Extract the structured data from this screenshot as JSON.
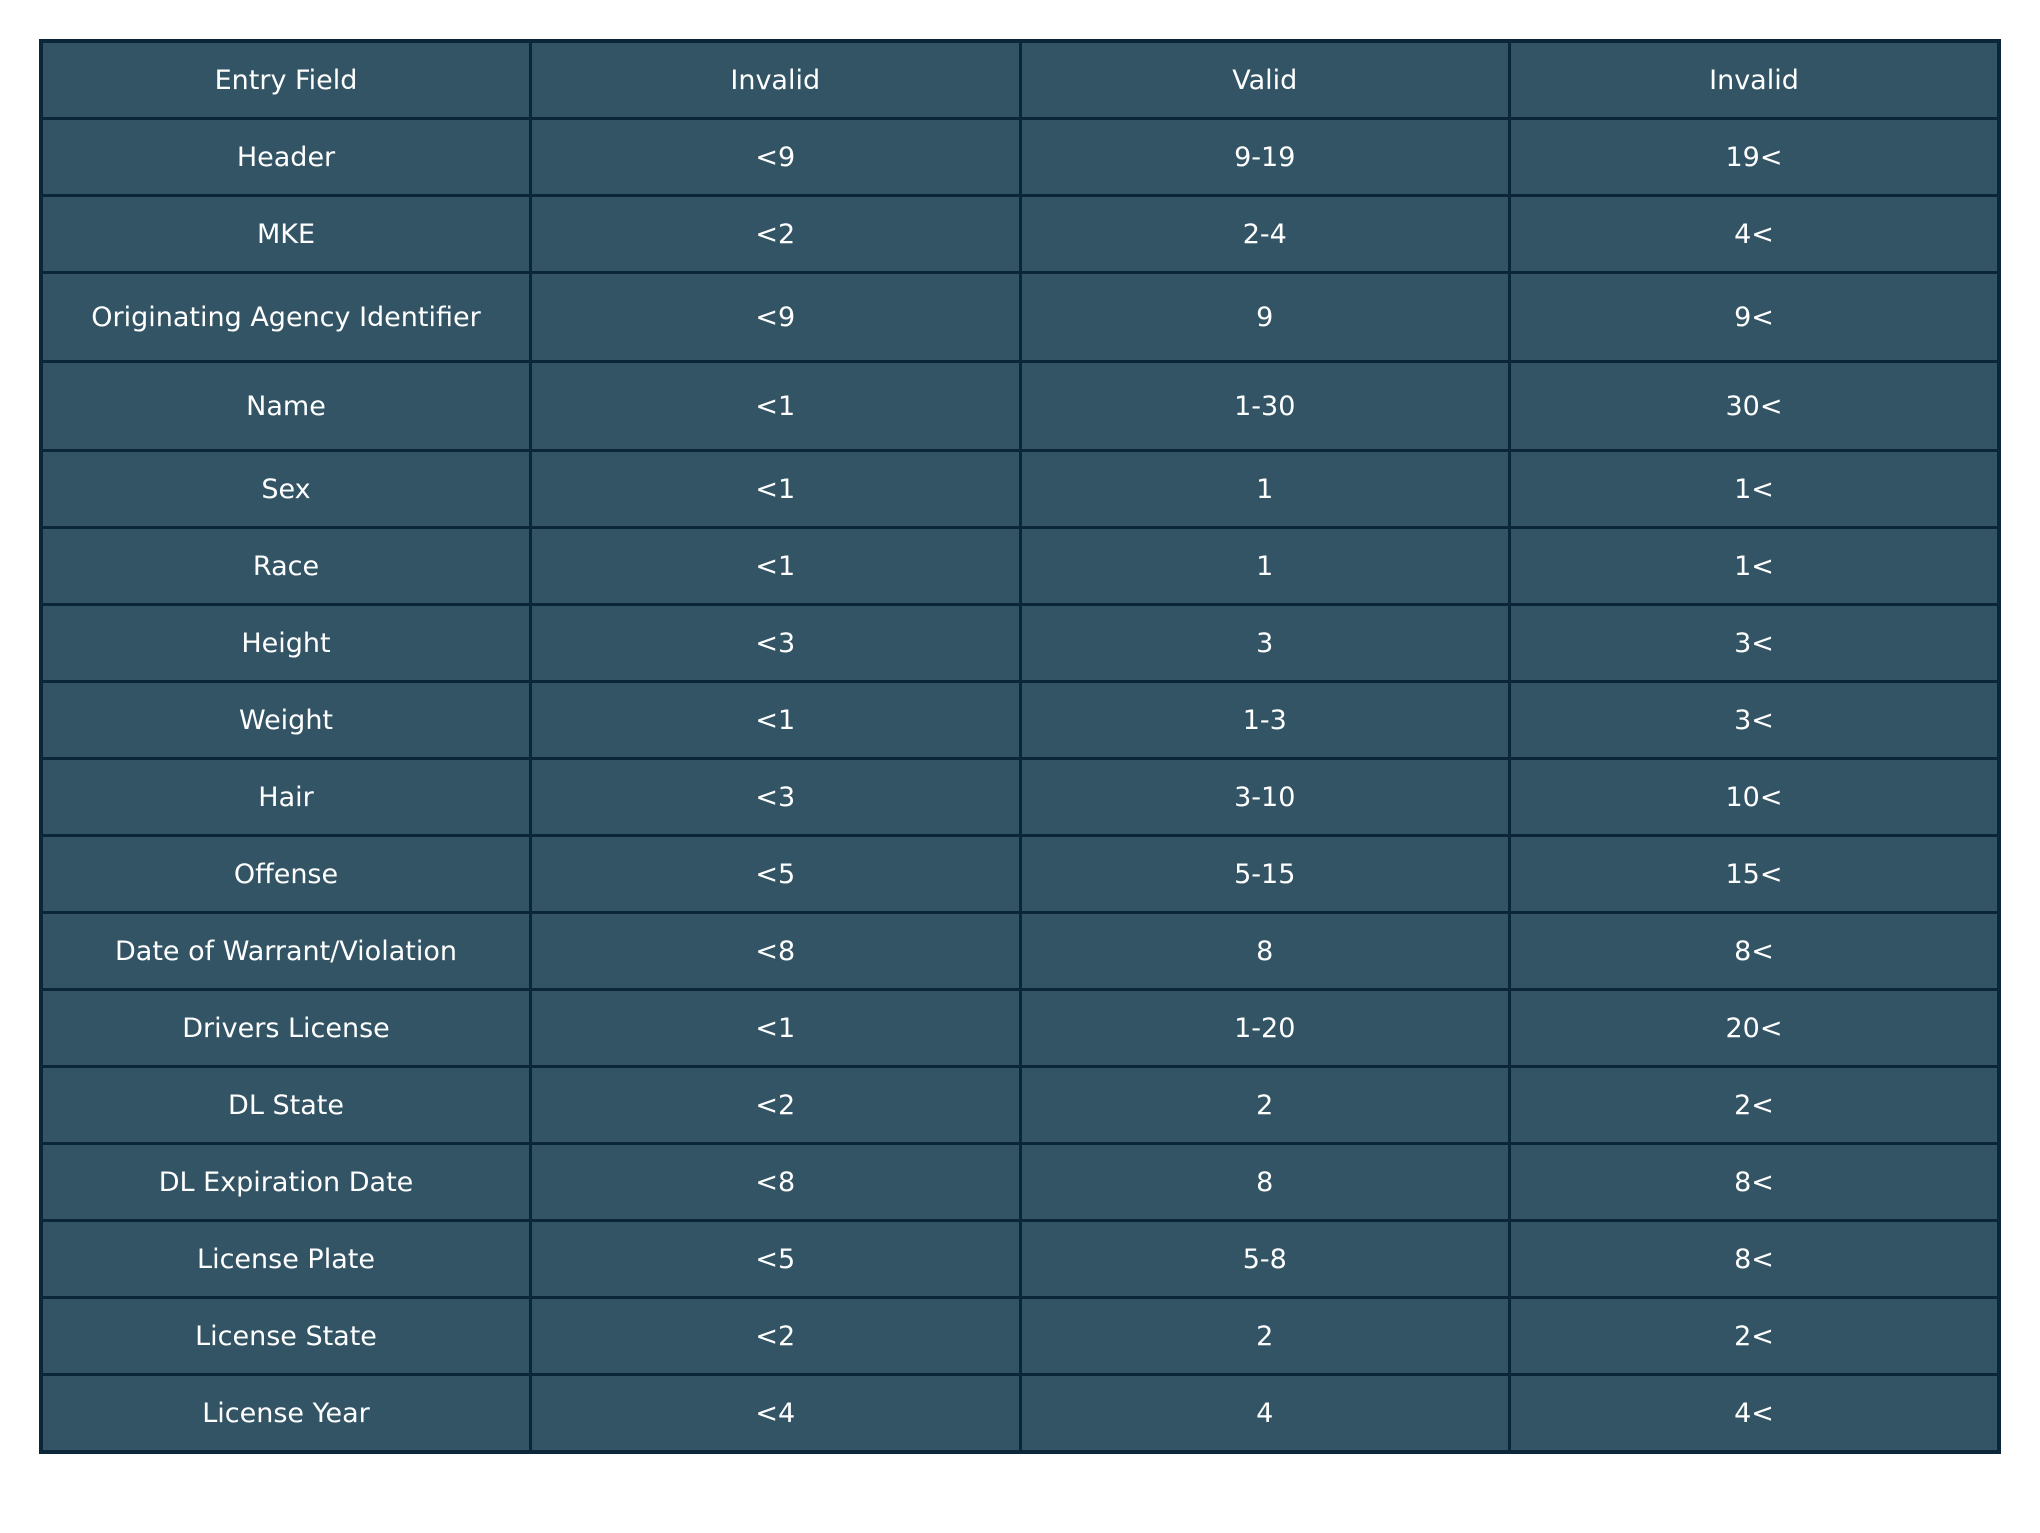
{
  "chart_data": {
    "type": "table",
    "columns": [
      "Entry Field",
      "Invalid",
      "Valid",
      "Invalid"
    ],
    "rows": [
      [
        "Header",
        "<9",
        "9-19",
        "19<"
      ],
      [
        "MKE",
        "<2",
        "2-4",
        "4<"
      ],
      [
        "Originating Agency Identifier",
        "<9",
        "9",
        "9<"
      ],
      [
        "Name",
        "<1",
        "1-30",
        "30<"
      ],
      [
        "Sex",
        "<1",
        "1",
        "1<"
      ],
      [
        "Race",
        "<1",
        "1",
        "1<"
      ],
      [
        "Height",
        "<3",
        "3",
        "3<"
      ],
      [
        "Weight",
        "<1",
        "1-3",
        "3<"
      ],
      [
        "Hair",
        "<3",
        "3-10",
        "10<"
      ],
      [
        "Offense",
        "<5",
        "5-15",
        "15<"
      ],
      [
        "Date of Warrant/Violation",
        "<8",
        "8",
        "8<"
      ],
      [
        "Drivers License",
        "<1",
        "1-20",
        "20<"
      ],
      [
        "DL State",
        "<2",
        "2",
        "2<"
      ],
      [
        "DL Expiration Date",
        "<8",
        "8",
        "8<"
      ],
      [
        "License Plate",
        "<5",
        "5-8",
        "8<"
      ],
      [
        "License State",
        "<2",
        "2",
        "2<"
      ],
      [
        "License Year",
        "<4",
        "4",
        "4<"
      ]
    ]
  },
  "colors": {
    "cell_background": "#325465",
    "border": "#0b2638",
    "text": "#ffffff"
  }
}
